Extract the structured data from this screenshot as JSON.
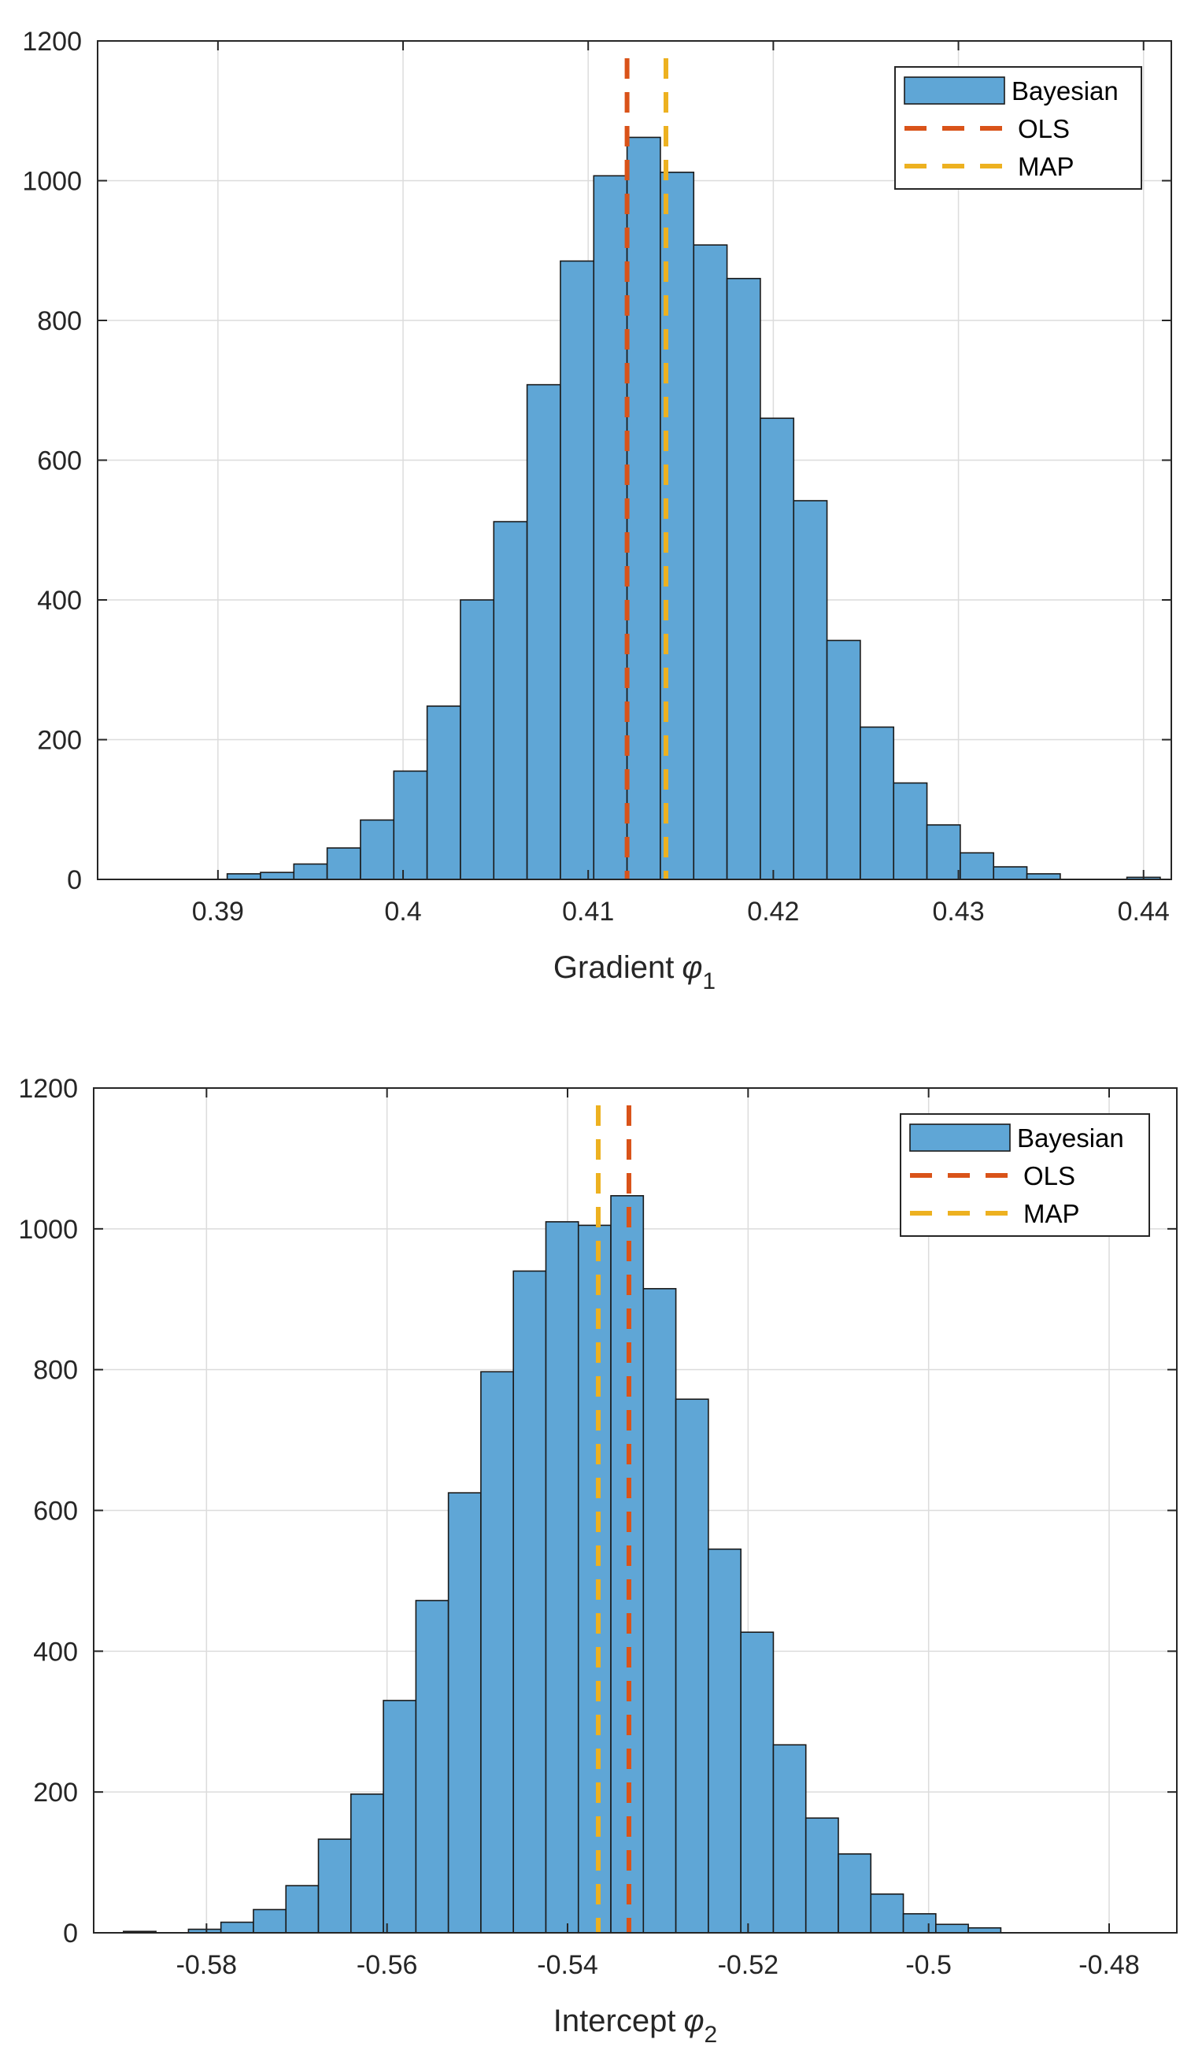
{
  "chart_data": [
    {
      "type": "bar",
      "subtype": "histogram",
      "name": "gradient",
      "xlabel": "Gradient",
      "xlabel_symbol": "φ",
      "xlabel_subscript": "1",
      "xlim": [
        0.3835,
        0.4415
      ],
      "ylim": [
        0,
        1200
      ],
      "xticks": [
        0.39,
        0.4,
        0.41,
        0.42,
        0.43,
        0.44
      ],
      "xtick_labels": [
        "0.39",
        "0.4",
        "0.41",
        "0.42",
        "0.43",
        "0.44"
      ],
      "yticks": [
        0,
        200,
        400,
        600,
        800,
        1000,
        1200
      ],
      "ytick_labels": [
        "0",
        "200",
        "400",
        "600",
        "800",
        "1000",
        "1200"
      ],
      "grid": true,
      "legend_position": "top-right",
      "bin_edges": [
        0.3905,
        0.3923,
        0.3941,
        0.3959,
        0.3977,
        0.3995,
        0.4013,
        0.4031,
        0.4049,
        0.4067,
        0.4085,
        0.4103,
        0.4121,
        0.4139,
        0.4157,
        0.4175,
        0.4193,
        0.4211,
        0.4229,
        0.4247,
        0.4265,
        0.4283,
        0.4301,
        0.4319,
        0.4337,
        0.4355,
        0.4373,
        0.4391,
        0.4409
      ],
      "counts": [
        8,
        10,
        22,
        45,
        85,
        155,
        248,
        400,
        512,
        708,
        885,
        1007,
        1062,
        1012,
        908,
        860,
        660,
        542,
        342,
        218,
        138,
        78,
        38,
        18,
        8,
        0,
        0,
        3
      ],
      "series": [
        {
          "name": "Bayesian",
          "kind": "histogram",
          "color": "#5fa6d6"
        },
        {
          "name": "OLS",
          "kind": "vline",
          "x": 0.4121,
          "color": "#d95319"
        },
        {
          "name": "MAP",
          "kind": "vline",
          "x": 0.4142,
          "color": "#edb120"
        }
      ]
    },
    {
      "type": "bar",
      "subtype": "histogram",
      "name": "intercept",
      "xlabel": "Intercept",
      "xlabel_symbol": "φ",
      "xlabel_subscript": "2",
      "xlim": [
        -0.5925,
        -0.4725
      ],
      "ylim": [
        0,
        1200
      ],
      "xticks": [
        -0.58,
        -0.56,
        -0.54,
        -0.52,
        -0.5,
        -0.48
      ],
      "xtick_labels": [
        "-0.58",
        "-0.56",
        "-0.54",
        "-0.52",
        "-0.5",
        "-0.48"
      ],
      "yticks": [
        0,
        200,
        400,
        600,
        800,
        1000,
        1200
      ],
      "ytick_labels": [
        "0",
        "200",
        "400",
        "600",
        "800",
        "1000",
        "1200"
      ],
      "grid": true,
      "legend_position": "top-right",
      "bin_edges": [
        -0.5892,
        -0.5856,
        -0.582,
        -0.5784,
        -0.5748,
        -0.5712,
        -0.5676,
        -0.564,
        -0.5604,
        -0.5568,
        -0.5532,
        -0.5496,
        -0.546,
        -0.5424,
        -0.5388,
        -0.5352,
        -0.5316,
        -0.528,
        -0.5244,
        -0.5208,
        -0.5172,
        -0.5136,
        -0.51,
        -0.5064,
        -0.5028,
        -0.4992,
        -0.4956,
        -0.492
      ],
      "counts": [
        2,
        0,
        5,
        15,
        33,
        67,
        133,
        197,
        330,
        472,
        625,
        797,
        940,
        1010,
        1005,
        1047,
        915,
        758,
        545,
        427,
        267,
        163,
        112,
        55,
        27,
        12,
        7
      ],
      "series": [
        {
          "name": "Bayesian",
          "kind": "histogram",
          "color": "#5fa6d6"
        },
        {
          "name": "OLS",
          "kind": "vline",
          "x": -0.5332,
          "color": "#d95319"
        },
        {
          "name": "MAP",
          "kind": "vline",
          "x": -0.5366,
          "color": "#edb120"
        }
      ]
    }
  ]
}
